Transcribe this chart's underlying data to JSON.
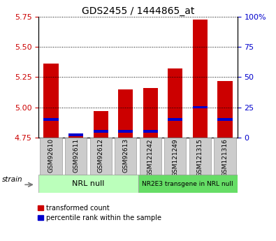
{
  "title": "GDS2455 / 1444865_at",
  "samples": [
    "GSM92610",
    "GSM92611",
    "GSM92612",
    "GSM92613",
    "GSM121242",
    "GSM121249",
    "GSM121315",
    "GSM121316"
  ],
  "red_values": [
    5.36,
    4.78,
    4.97,
    5.15,
    5.16,
    5.32,
    5.73,
    5.22
  ],
  "blue_percentile": [
    15,
    2,
    5,
    5,
    5,
    15,
    25,
    15
  ],
  "ylim_left": [
    4.75,
    5.75
  ],
  "ylim_right": [
    0,
    100
  ],
  "yticks_left": [
    4.75,
    5.0,
    5.25,
    5.5,
    5.75
  ],
  "yticks_right": [
    0,
    25,
    50,
    75,
    100
  ],
  "ytick_labels_right": [
    "0",
    "25",
    "50",
    "75",
    "100%"
  ],
  "bar_bottom": 4.75,
  "group1_label": "NRL null",
  "group2_label": "NR2E3 transgene in NRL null",
  "group1_indices": [
    0,
    1,
    2,
    3
  ],
  "group2_indices": [
    4,
    5,
    6,
    7
  ],
  "group1_color": "#bbffbb",
  "group2_color": "#66dd66",
  "bar_color_red": "#cc0000",
  "bar_color_blue": "#0000cc",
  "legend_red": "transformed count",
  "legend_blue": "percentile rank within the sample",
  "strain_label": "strain",
  "title_fontsize": 10,
  "tick_label_color_left": "#cc0000",
  "tick_label_color_right": "#0000cc",
  "bar_width": 0.6,
  "cell_color": "#cccccc",
  "cell_edge_color": "#999999"
}
